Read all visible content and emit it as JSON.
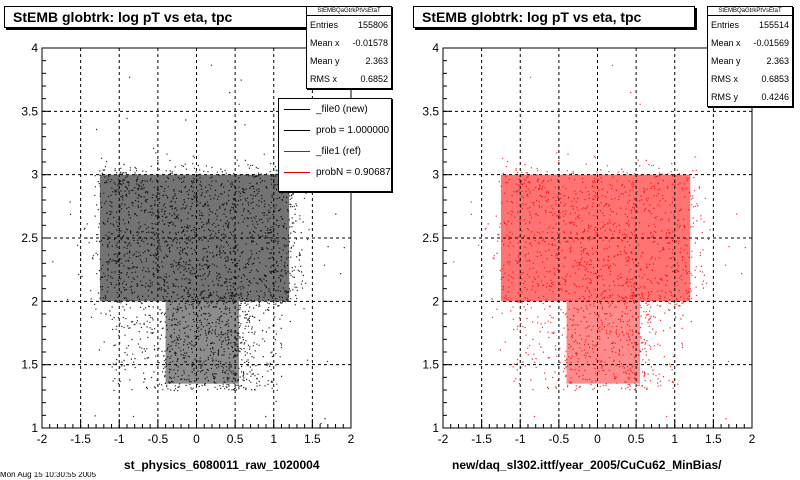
{
  "panels": [
    {
      "title": "StEMB globtrk: log pT vs eta, tpc",
      "stats": {
        "name": "StEMBQaGtrkPtVsEtaT",
        "rows": [
          {
            "label": "Entries",
            "value": "155806"
          },
          {
            "label": "Mean x",
            "value": "-0.01578"
          },
          {
            "label": "Mean y",
            "value": "2.363"
          },
          {
            "label": "RMS x",
            "value": "0.6852"
          }
        ]
      },
      "legend": [
        {
          "label": "_file0 (new)",
          "color": "#000000"
        },
        {
          "label": "prob = 1.000000",
          "color": "#000000"
        },
        {
          "label": "_file1 (ref)",
          "color": "#e00000"
        },
        {
          "label": "probN = 0.906870",
          "color": "#e00000"
        }
      ],
      "xtitle": "st_physics_6080011_raw_1020004"
    },
    {
      "title": "StEMB globtrk: log pT vs eta, tpc",
      "stats": {
        "name": "StEMBQaGtrkPtVsEtaT",
        "rows": [
          {
            "label": "Entries",
            "value": "155514"
          },
          {
            "label": "Mean x",
            "value": "-0.01569"
          },
          {
            "label": "Mean y",
            "value": "2.363"
          },
          {
            "label": "RMS x",
            "value": "0.6853"
          },
          {
            "label": "RMS y",
            "value": "0.4246"
          }
        ]
      },
      "xtitle": "new/daq_sl302.ittf/year_2005/CuCu62_MinBias/"
    }
  ],
  "footer_text": "Mon Aug 15 10:30:55 2005",
  "chart_data": [
    {
      "type": "scatter",
      "color": "#000000",
      "xlim": [
        -2,
        2
      ],
      "ylim": [
        1,
        4
      ],
      "xticks": [
        -2,
        -1.5,
        -1,
        -0.5,
        0,
        0.5,
        1,
        1.5,
        2
      ],
      "xtick_labels": [
        "-2",
        "-1.5",
        "-1",
        "-0.5",
        "0",
        "0.5",
        "1",
        "1.5",
        "2"
      ],
      "yticks": [
        1,
        1.5,
        2,
        2.5,
        3,
        3.5,
        4
      ],
      "ytick_labels": [
        "1",
        "1.5",
        "2",
        "2.5",
        "3",
        "3.5",
        "4"
      ],
      "grid": true,
      "entries": 155806,
      "mean_x": -0.01578,
      "mean_y": 2.363,
      "rms_x": 0.6852
    },
    {
      "type": "scatter",
      "color": "#ff0000",
      "xlim": [
        -2,
        2
      ],
      "ylim": [
        1,
        4
      ],
      "xticks": [
        -2,
        -1.5,
        -1,
        -0.5,
        0,
        0.5,
        1,
        1.5,
        2
      ],
      "xtick_labels": [
        "-2",
        "-1.5",
        "-1",
        "-0.5",
        "0",
        "0.5",
        "1",
        "1.5",
        "2"
      ],
      "yticks": [
        1,
        1.5,
        2,
        2.5,
        3,
        3.5,
        4
      ],
      "ytick_labels": [
        "1",
        "1.5",
        "2",
        "2.5",
        "3",
        "3.5",
        "4"
      ],
      "grid": true,
      "entries": 155514,
      "mean_x": -0.01569,
      "mean_y": 2.363,
      "rms_x": 0.6853,
      "rms_y": 0.4246
    }
  ]
}
